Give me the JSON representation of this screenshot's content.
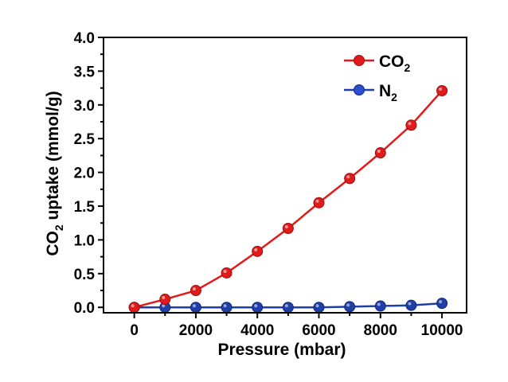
{
  "chart_data": {
    "type": "line",
    "title": "",
    "xlabel": "Pressure (mbar)",
    "ylabel_main": "CO",
    "ylabel_sub": "2",
    "ylabel_rest": " uptake (mmol/g)",
    "xlim": [
      -1000,
      10800
    ],
    "ylim": [
      -0.08,
      4.0
    ],
    "xticks": [
      0,
      2000,
      4000,
      6000,
      8000,
      10000
    ],
    "yticks": [
      "0.0",
      "0.5",
      "1.0",
      "1.5",
      "2.0",
      "2.5",
      "3.0",
      "3.5",
      "4.0"
    ],
    "legend_position": "top-right",
    "series": [
      {
        "name_main": "CO",
        "name_sub": "2",
        "color": "#e01b1b",
        "x": [
          0,
          1000,
          2000,
          3000,
          4000,
          5000,
          6000,
          7000,
          8000,
          9000,
          10000
        ],
        "y": [
          0.0,
          0.12,
          0.25,
          0.51,
          0.83,
          1.17,
          1.55,
          1.91,
          2.29,
          2.7,
          3.21
        ]
      },
      {
        "name_main": "N",
        "name_sub": "2",
        "color": "#1f3fa8",
        "x": [
          0,
          1000,
          2000,
          3000,
          4000,
          5000,
          6000,
          7000,
          8000,
          9000,
          10000
        ],
        "y": [
          0.0,
          0.0,
          0.0,
          0.0,
          0.0,
          0.0,
          0.0,
          0.01,
          0.02,
          0.03,
          0.06
        ]
      }
    ]
  }
}
